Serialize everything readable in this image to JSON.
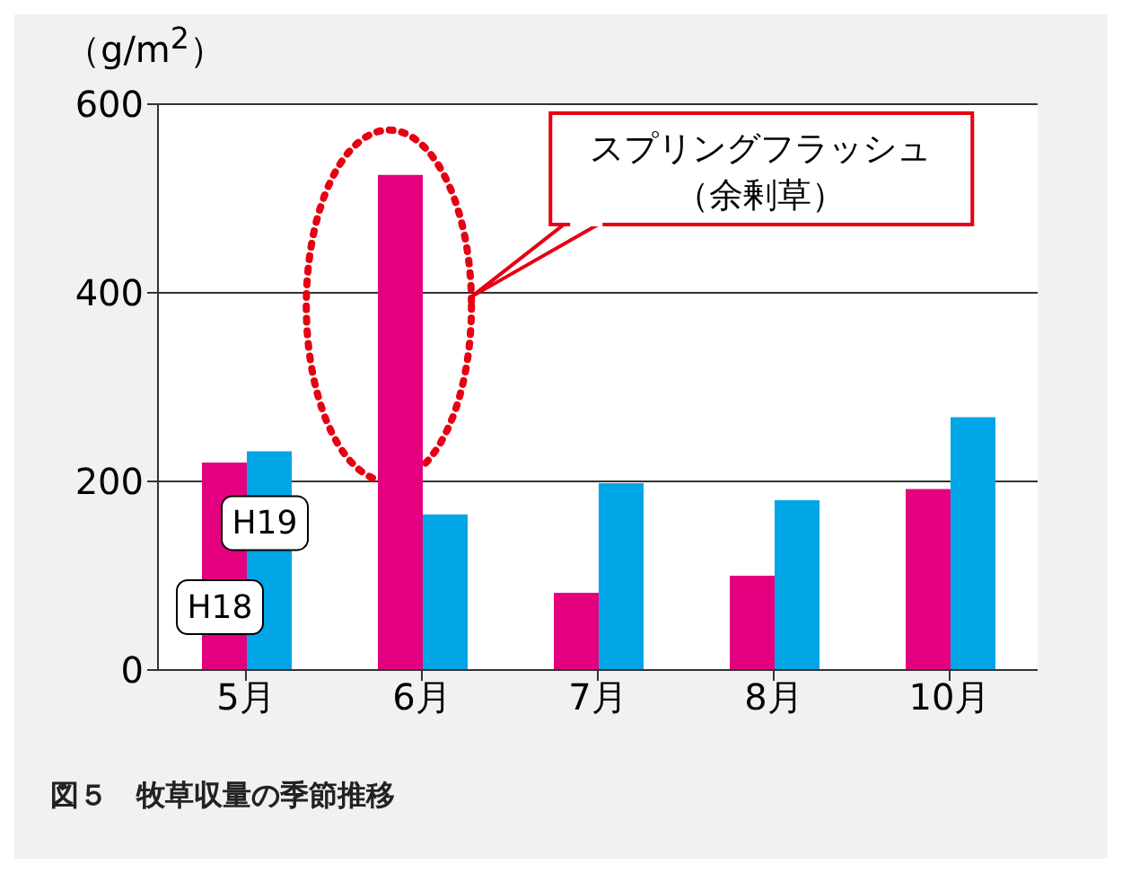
{
  "chart_data": {
    "type": "bar",
    "title": "図５　牧草収量の季節推移",
    "ylabel": "（g/m$^{2}$）",
    "categories": [
      "5月",
      "6月",
      "7月",
      "8月",
      "10月"
    ],
    "series": [
      {
        "name": "H18",
        "color": "#e4007f",
        "values": [
          220,
          525,
          82,
          100,
          192
        ]
      },
      {
        "name": "H19",
        "color": "#00a5e6",
        "values": [
          232,
          165,
          198,
          180,
          268
        ]
      }
    ],
    "ylim": [
      0,
      600
    ],
    "yticks": [
      0,
      200,
      400,
      600
    ],
    "grid": "y",
    "legend": false,
    "annotations": [
      "スプリングフラッシュ（余剰草）"
    ]
  }
}
